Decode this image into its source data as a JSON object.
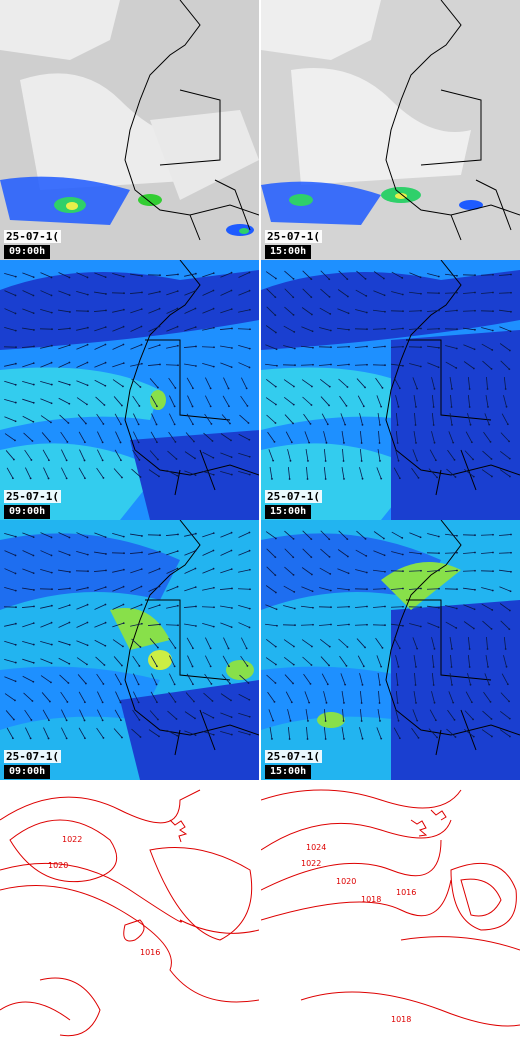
{
  "panels": [
    {
      "kind": "cloud-precip",
      "date": "25-07-1(",
      "time": "09:00h"
    },
    {
      "kind": "cloud-precip",
      "date": "25-07-1(",
      "time": "15:00h"
    },
    {
      "kind": "wind-a",
      "date": "25-07-1(",
      "time": "09:00h"
    },
    {
      "kind": "wind-a",
      "date": "25-07-1(",
      "time": "15:00h"
    },
    {
      "kind": "wind-b",
      "date": "25-07-1(",
      "time": "09:00h"
    },
    {
      "kind": "wind-b",
      "date": "25-07-1(",
      "time": "15:00h"
    },
    {
      "kind": "pressure",
      "isobars": [
        "1022",
        "1020",
        "1016"
      ]
    },
    {
      "kind": "pressure",
      "isobars": [
        "1024",
        "1022",
        "1020",
        "1018",
        "1016",
        "1018"
      ]
    }
  ],
  "colors": {
    "land_border": "#000000",
    "isobar": "#dd0000",
    "ocean_deep": "#1a3fd0",
    "ocean_mid": "#1e90ff",
    "ocean_light": "#33ccee",
    "calm": "#88e04a",
    "cloud_gray": "#bdbdbd"
  }
}
